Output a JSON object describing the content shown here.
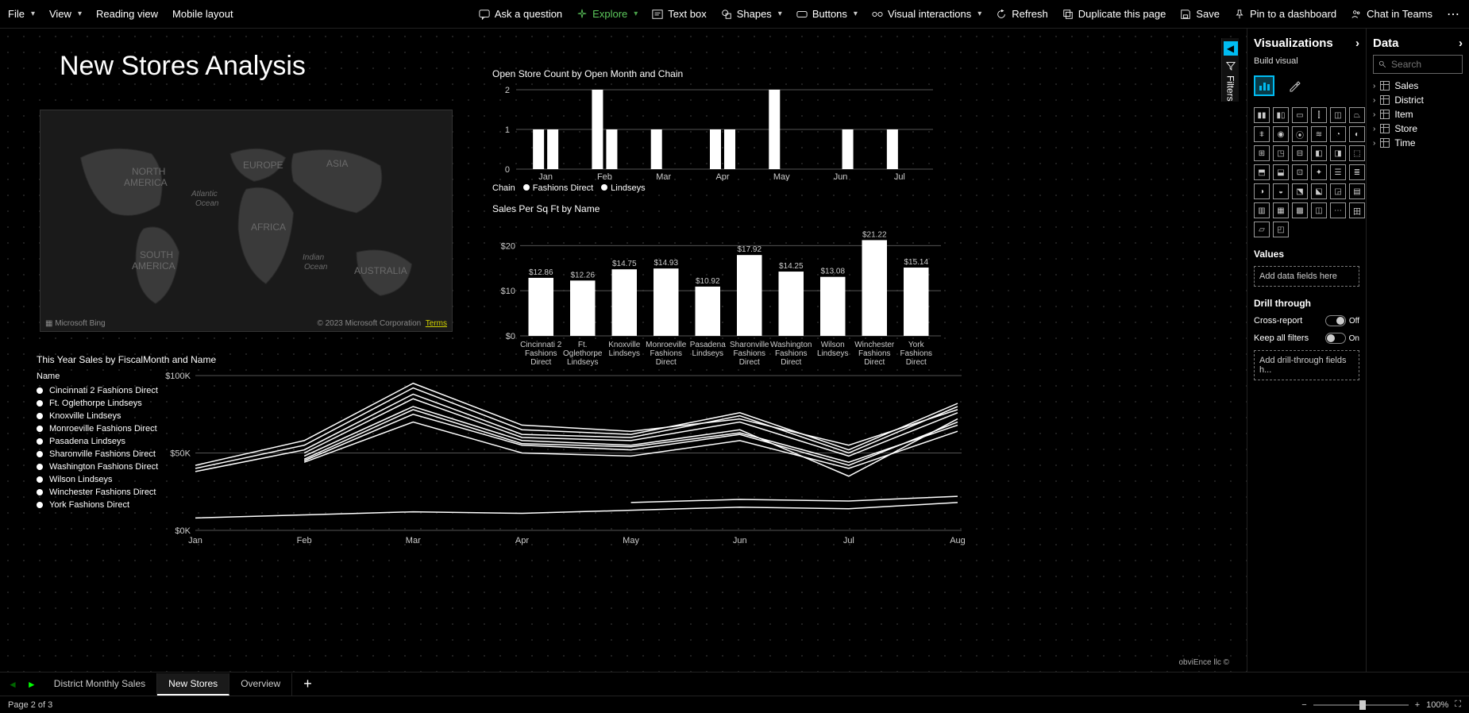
{
  "toolbar": {
    "file": "File",
    "view": "View",
    "reading_view": "Reading view",
    "mobile_layout": "Mobile layout",
    "ask_question": "Ask a question",
    "explore": "Explore",
    "text_box": "Text box",
    "shapes": "Shapes",
    "buttons": "Buttons",
    "visual_interactions": "Visual interactions",
    "refresh": "Refresh",
    "duplicate": "Duplicate this page",
    "save": "Save",
    "pin": "Pin to a dashboard",
    "chat": "Chat in Teams"
  },
  "page_title": "New Stores Analysis",
  "filters_label": "Filters",
  "map": {
    "labels": {
      "na1": "NORTH",
      "na2": "AMERICA",
      "sa1": "SOUTH",
      "sa2": "AMERICA",
      "eu": "EUROPE",
      "af": "AFRICA",
      "as": "ASIA",
      "au": "AUSTRALIA",
      "atl1": "Atlantic",
      "atl2": "Ocean",
      "ind1": "Indian",
      "ind2": "Ocean"
    },
    "bing": "Microsoft Bing",
    "copyright": "© 2023 Microsoft Corporation",
    "terms": "Terms"
  },
  "chart1": {
    "title": "Open Store Count by Open Month and Chain",
    "type": "bar-grouped",
    "ylim": [
      0,
      2
    ],
    "yticks": [
      0,
      1,
      2
    ],
    "months": [
      "Jan",
      "Feb",
      "Mar",
      "Apr",
      "May",
      "Jun",
      "Jul"
    ],
    "series": [
      {
        "name": "Fashions Direct",
        "values": [
          1,
          2,
          1,
          1,
          2,
          0,
          1
        ]
      },
      {
        "name": "Lindseys",
        "values": [
          1,
          1,
          0,
          1,
          0,
          1,
          0
        ]
      }
    ],
    "legend_label": "Chain",
    "legend_items": [
      "Fashions Direct",
      "Lindseys"
    ],
    "bar_color": "#ffffff",
    "grid_color": "#555555",
    "background": "#000000"
  },
  "chart2": {
    "title": "Sales Per Sq Ft by Name",
    "type": "bar",
    "ylim": [
      0,
      22
    ],
    "yticks": [
      "$0",
      "$10",
      "$20"
    ],
    "ytick_values": [
      0,
      10,
      20
    ],
    "categories": [
      "Cincinnati 2 Fashions Direct",
      "Ft. Oglethorpe Lindseys",
      "Knoxville Lindseys",
      "Monroeville Fashions Direct",
      "Pasadena Lindseys",
      "Sharonville Fashions Direct",
      "Washington Fashions Direct",
      "Wilson Lindseys",
      "Winchester Fashions Direct",
      "York Fashions Direct"
    ],
    "values": [
      12.86,
      12.26,
      14.75,
      14.93,
      10.92,
      17.92,
      14.25,
      13.08,
      21.22,
      15.14
    ],
    "value_labels": [
      "$12.86",
      "$12.26",
      "$14.75",
      "$14.93",
      "$10.92",
      "$17.92",
      "$14.25",
      "$13.08",
      "$21.22",
      "$15.14"
    ],
    "bar_color": "#ffffff",
    "grid_color": "#555555"
  },
  "chart3": {
    "title": "This Year Sales by FiscalMonth and Name",
    "type": "line",
    "legend_header": "Name",
    "ylim": [
      0,
      100
    ],
    "yticks": [
      "$0K",
      "$50K",
      "$100K"
    ],
    "ytick_values": [
      0,
      50,
      100
    ],
    "months": [
      "Jan",
      "Feb",
      "Mar",
      "Apr",
      "May",
      "Jun",
      "Jul",
      "Aug"
    ],
    "series_names": [
      "Cincinnati 2 Fashions Direct",
      "Ft. Oglethorpe Lindseys",
      "Knoxville Lindseys",
      "Monroeville Fashions Direct",
      "Pasadena Lindseys",
      "Sharonville Fashions Direct",
      "Washington Fashions Direct",
      "Wilson Lindseys",
      "Winchester Fashions Direct",
      "York Fashions Direct"
    ],
    "series": [
      [
        42,
        58,
        95,
        68,
        64,
        72,
        55,
        78
      ],
      [
        null,
        50,
        85,
        60,
        58,
        70,
        48,
        76
      ],
      [
        38,
        52,
        88,
        62,
        60,
        74,
        50,
        80
      ],
      [
        null,
        45,
        75,
        55,
        52,
        62,
        42,
        70
      ],
      [
        null,
        44,
        70,
        50,
        48,
        58,
        40,
        64
      ],
      [
        40,
        55,
        92,
        65,
        62,
        76,
        52,
        82
      ],
      [
        null,
        null,
        null,
        null,
        18,
        20,
        19,
        22
      ],
      [
        8,
        10,
        12,
        11,
        13,
        15,
        14,
        18
      ],
      [
        null,
        48,
        80,
        58,
        55,
        65,
        35,
        72
      ],
      [
        null,
        46,
        78,
        56,
        54,
        63,
        44,
        68
      ]
    ],
    "line_color": "#ffffff"
  },
  "footer_credit": "obviEnce llc ©",
  "viz_pane": {
    "title": "Visualizations",
    "build_visual": "Build visual",
    "values_label": "Values",
    "values_placeholder": "Add data fields here",
    "drill_label": "Drill through",
    "cross_report": "Cross-report",
    "cross_report_state": "Off",
    "keep_filters": "Keep all filters",
    "keep_filters_state": "On",
    "drill_placeholder": "Add drill-through fields h...",
    "viz_icons_count": 38
  },
  "data_pane": {
    "title": "Data",
    "search_placeholder": "Search",
    "tables": [
      "Sales",
      "District",
      "Item",
      "Store",
      "Time"
    ]
  },
  "tabs": {
    "prev": "◄",
    "next": "►",
    "items": [
      "District Monthly Sales",
      "New Stores",
      "Overview"
    ],
    "active_index": 1
  },
  "status": {
    "page_info": "Page 2 of 3",
    "zoom": "100%"
  }
}
